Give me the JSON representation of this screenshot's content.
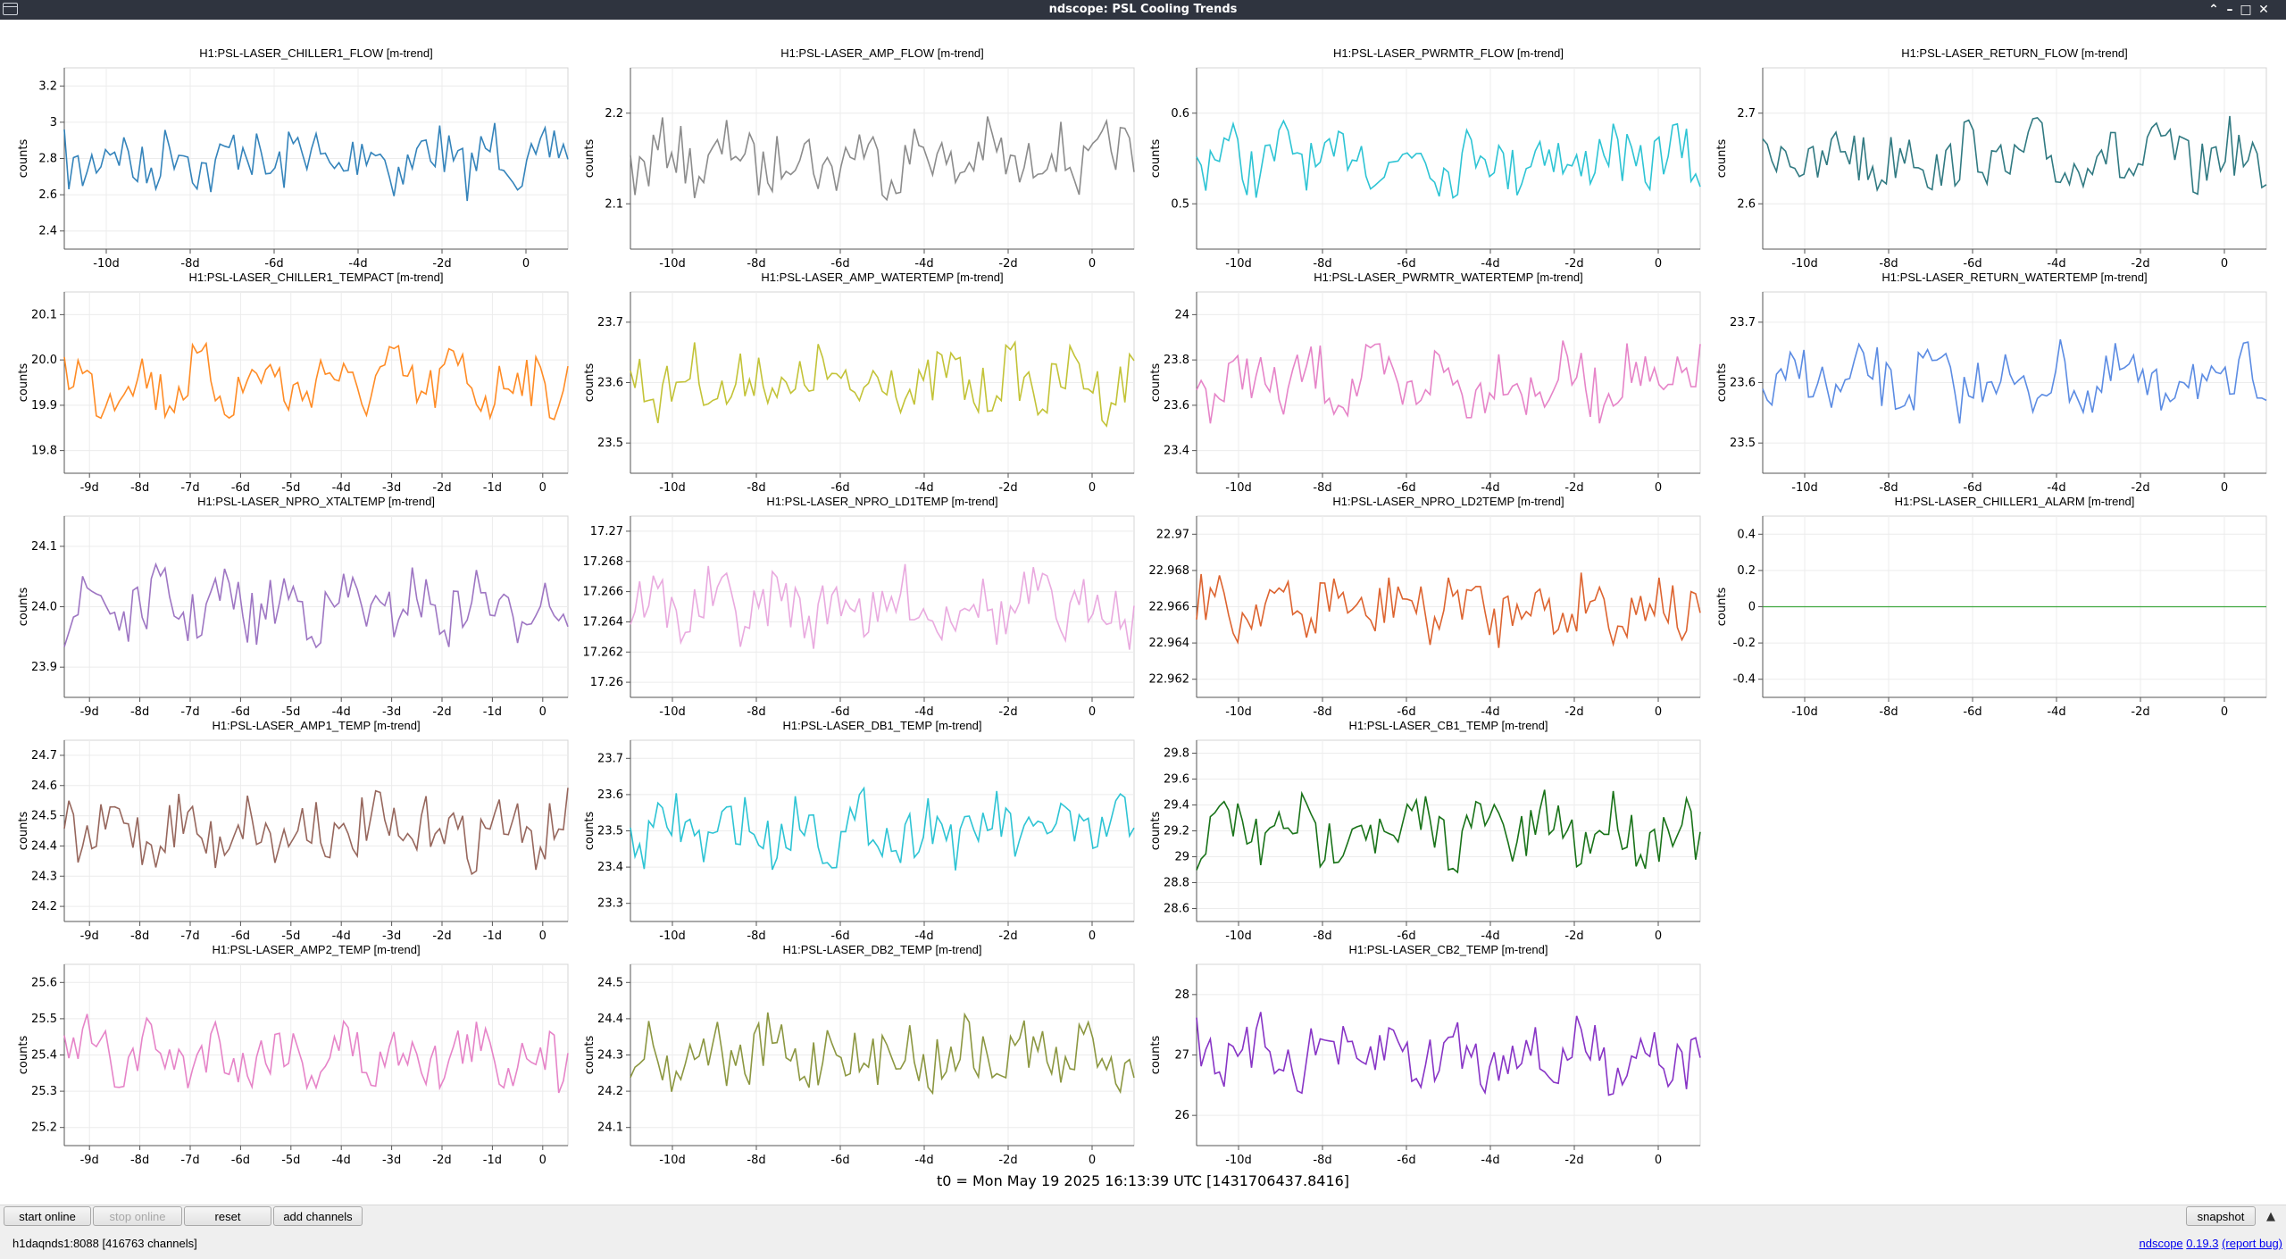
{
  "window": {
    "title": "ndscope: PSL Cooling Trends"
  },
  "plots": [
    {
      "title": "H1:PSL-LASER_CHILLER1_FLOW [m-trend]",
      "ylabel": "counts",
      "color": "#1f77b4",
      "yticks": [
        "3.2",
        "3",
        "2.8",
        "2.6",
        "2.4"
      ],
      "xticks": [
        "-10d",
        "-8d",
        "-6d",
        "-4d",
        "-2d",
        "0"
      ]
    },
    {
      "title": "H1:PSL-LASER_AMP_FLOW [m-trend]",
      "ylabel": "counts",
      "color": "#7f7f7f",
      "yticks": [
        "2.2",
        "2.1"
      ],
      "xticks": [
        "-10d",
        "-8d",
        "-6d",
        "-4d",
        "-2d",
        "0"
      ]
    },
    {
      "title": "H1:PSL-LASER_PWRMTR_FLOW [m-trend]",
      "ylabel": "counts",
      "color": "#17becf",
      "yticks": [
        "0.6",
        "0.5"
      ],
      "xticks": [
        "-10d",
        "-8d",
        "-6d",
        "-4d",
        "-2d",
        "0"
      ]
    },
    {
      "title": "H1:PSL-LASER_RETURN_FLOW [m-trend]",
      "ylabel": "counts",
      "color": "#1b6b74",
      "yticks": [
        "2.7",
        "2.6"
      ],
      "xticks": [
        "-10d",
        "-8d",
        "-6d",
        "-4d",
        "-2d",
        "0"
      ]
    },
    {
      "title": "H1:PSL-LASER_CHILLER1_TEMPACT [m-trend]",
      "ylabel": "counts",
      "color": "#ff7f0e",
      "yticks": [
        "20.1",
        "20.0",
        "19.9",
        "19.8"
      ],
      "xticks": [
        "-9d",
        "-8d",
        "-7d",
        "-6d",
        "-5d",
        "-4d",
        "-3d",
        "-2d",
        "-1d",
        "0"
      ]
    },
    {
      "title": "H1:PSL-LASER_AMP_WATERTEMP [m-trend]",
      "ylabel": "counts",
      "color": "#bcbd22",
      "yticks": [
        "23.7",
        "23.6",
        "23.5"
      ],
      "xticks": [
        "-10d",
        "-8d",
        "-6d",
        "-4d",
        "-2d",
        "0"
      ]
    },
    {
      "title": "H1:PSL-LASER_PWRMTR_WATERTEMP [m-trend]",
      "ylabel": "counts",
      "color": "#e377c2",
      "yticks": [
        "24",
        "23.8",
        "23.6",
        "23.4"
      ],
      "xticks": [
        "-10d",
        "-8d",
        "-6d",
        "-4d",
        "-2d",
        "0"
      ]
    },
    {
      "title": "H1:PSL-LASER_RETURN_WATERTEMP [m-trend]",
      "ylabel": "counts",
      "color": "#4a7fe0",
      "yticks": [
        "23.7",
        "23.6",
        "23.5"
      ],
      "xticks": [
        "-10d",
        "-8d",
        "-6d",
        "-4d",
        "-2d",
        "0"
      ]
    },
    {
      "title": "H1:PSL-LASER_NPRO_XTALTEMP [m-trend]",
      "ylabel": "counts",
      "color": "#9467bd",
      "yticks": [
        "24.1",
        "24.0",
        "23.9"
      ],
      "xticks": [
        "-9d",
        "-8d",
        "-7d",
        "-6d",
        "-5d",
        "-4d",
        "-3d",
        "-2d",
        "-1d",
        "0"
      ]
    },
    {
      "title": "H1:PSL-LASER_NPRO_LD1TEMP [m-trend]",
      "ylabel": "",
      "color": "#e7a1dc",
      "yticks": [
        "17.27",
        "17.268",
        "17.266",
        "17.264",
        "17.262",
        "17.26"
      ],
      "xticks": [
        "-10d",
        "-8d",
        "-6d",
        "-4d",
        "-2d",
        "0"
      ]
    },
    {
      "title": "H1:PSL-LASER_NPRO_LD2TEMP [m-trend]",
      "ylabel": "",
      "color": "#d95319",
      "yticks": [
        "22.97",
        "22.968",
        "22.966",
        "22.964",
        "22.962"
      ],
      "xticks": [
        "-10d",
        "-8d",
        "-6d",
        "-4d",
        "-2d",
        "0"
      ]
    },
    {
      "title": "H1:PSL-LASER_CHILLER1_ALARM [m-trend]",
      "ylabel": "counts",
      "color": "#2ca02c",
      "yticks": [
        "0.4",
        "0.2",
        "0",
        "-0.2",
        "-0.4"
      ],
      "xticks": [
        "-10d",
        "-8d",
        "-6d",
        "-4d",
        "-2d",
        "0"
      ]
    },
    {
      "title": "H1:PSL-LASER_AMP1_TEMP [m-trend]",
      "ylabel": "counts",
      "color": "#8c564b",
      "yticks": [
        "24.7",
        "24.6",
        "24.5",
        "24.4",
        "24.3",
        "24.2"
      ],
      "xticks": [
        "-9d",
        "-8d",
        "-7d",
        "-6d",
        "-5d",
        "-4d",
        "-3d",
        "-2d",
        "-1d",
        "0"
      ]
    },
    {
      "title": "H1:PSL-LASER_DB1_TEMP [m-trend]",
      "ylabel": "counts",
      "color": "#17becf",
      "yticks": [
        "23.7",
        "23.6",
        "23.5",
        "23.4",
        "23.3"
      ],
      "xticks": [
        "-10d",
        "-8d",
        "-6d",
        "-4d",
        "-2d",
        "0"
      ]
    },
    {
      "title": "H1:PSL-LASER_CB1_TEMP [m-trend]",
      "ylabel": "counts",
      "color": "#006400",
      "yticks": [
        "29.8",
        "29.6",
        "29.4",
        "29.2",
        "29",
        "28.8",
        "28.6"
      ],
      "xticks": [
        "-10d",
        "-8d",
        "-6d",
        "-4d",
        "-2d",
        "0"
      ]
    },
    {
      "title": "H1:PSL-LASER_AMP2_TEMP [m-trend]",
      "ylabel": "counts",
      "color": "#e377c2",
      "yticks": [
        "25.6",
        "25.5",
        "25.4",
        "25.3",
        "25.2"
      ],
      "xticks": [
        "-9d",
        "-8d",
        "-7d",
        "-6d",
        "-5d",
        "-4d",
        "-3d",
        "-2d",
        "-1d",
        "0"
      ]
    },
    {
      "title": "H1:PSL-LASER_DB2_TEMP [m-trend]",
      "ylabel": "counts",
      "color": "#808c2c",
      "yticks": [
        "24.5",
        "24.4",
        "24.3",
        "24.2",
        "24.1"
      ],
      "xticks": [
        "-10d",
        "-8d",
        "-6d",
        "-4d",
        "-2d",
        "0"
      ]
    },
    {
      "title": "H1:PSL-LASER_CB2_TEMP [m-trend]",
      "ylabel": "counts",
      "color": "#7b1fc0",
      "yticks": [
        "28",
        "27",
        "26"
      ],
      "xticks": [
        "-10d",
        "-8d",
        "-6d",
        "-4d",
        "-2d",
        "0"
      ]
    }
  ],
  "t0_label": "t0 = Mon May 19 2025 16:13:39 UTC [1431706437.8416]",
  "toolbar": {
    "start_online": "start online",
    "stop_online": "stop online",
    "reset": "reset",
    "add_channels": "add channels",
    "snapshot": "snapshot"
  },
  "status": {
    "server": "h1daqnds1:8088",
    "channels": "[416763 channels]",
    "app_name": "ndscope",
    "version": "0.19.3",
    "report_bug": "(report bug)"
  }
}
